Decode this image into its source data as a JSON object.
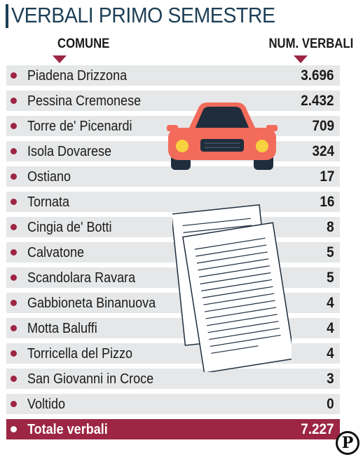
{
  "title": "VERBALI PRIMO SEMESTRE",
  "columns": {
    "comune": "COMUNE",
    "num": "NUM. VERBALI"
  },
  "chart_data": {
    "type": "table",
    "title": "VERBALI PRIMO SEMESTRE",
    "columns": [
      "COMUNE",
      "NUM. VERBALI"
    ],
    "rows": [
      {
        "name": "Piadena Drizzona",
        "value": "3.696"
      },
      {
        "name": "Pessina Cremonese",
        "value": "2.432"
      },
      {
        "name": "Torre de' Picenardi",
        "value": "709"
      },
      {
        "name": "Isola Dovarese",
        "value": "324"
      },
      {
        "name": "Ostiano",
        "value": "17"
      },
      {
        "name": "Tornata",
        "value": "16"
      },
      {
        "name": "Cingia de' Botti",
        "value": "8"
      },
      {
        "name": "Calvatone",
        "value": "5"
      },
      {
        "name": "Scandolara Ravara",
        "value": "5"
      },
      {
        "name": "Gabbioneta Binanuova",
        "value": "4"
      },
      {
        "name": "Motta Baluffi",
        "value": "4"
      },
      {
        "name": "Torricella del Pizzo",
        "value": "4"
      },
      {
        "name": "San Giovanni in Croce",
        "value": "3"
      },
      {
        "name": "Voltido",
        "value": "0"
      }
    ],
    "total": {
      "name": "Totale verbali",
      "value": "7.227"
    }
  },
  "colors": {
    "accent": "#9c2644",
    "title": "#1d3f56",
    "row_bg": "#e6e7e8",
    "car": "#f26b5b"
  },
  "icons": [
    "car-icon",
    "documents-icon",
    "bullet-dot-icon"
  ],
  "logo": "P"
}
